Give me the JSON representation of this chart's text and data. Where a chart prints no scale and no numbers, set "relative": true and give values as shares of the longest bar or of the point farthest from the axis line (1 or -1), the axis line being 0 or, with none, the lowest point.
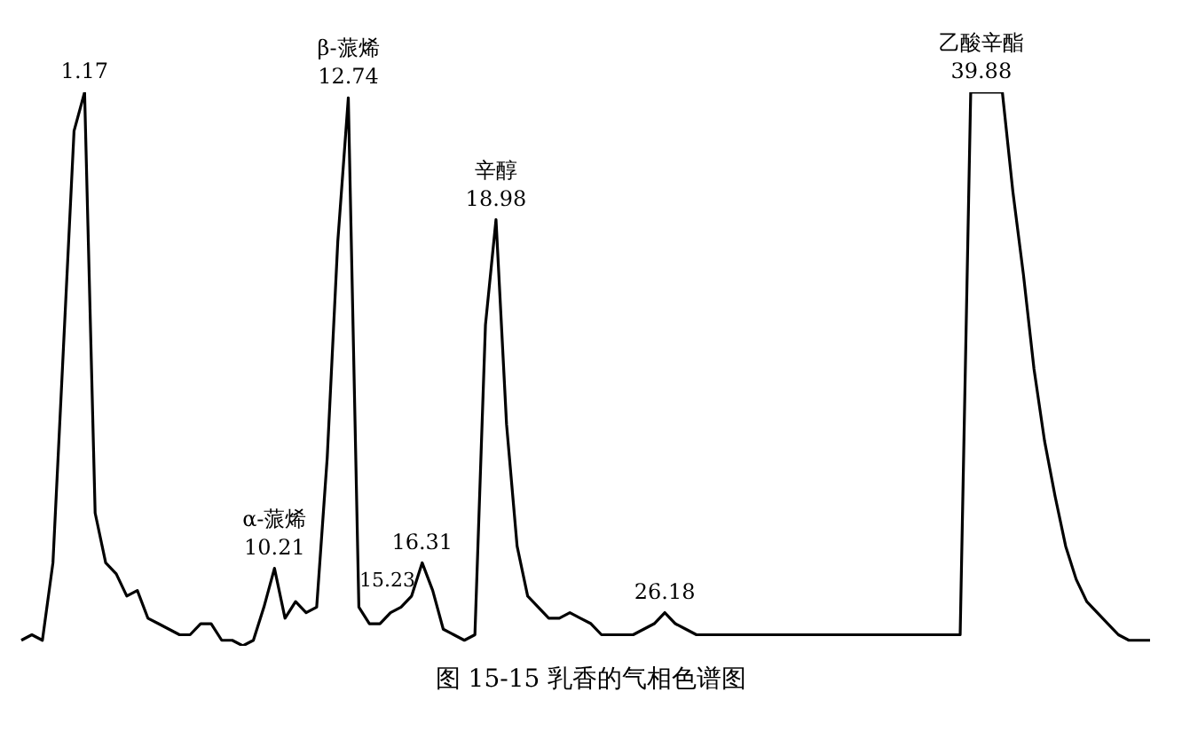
{
  "chart_data": {
    "type": "line",
    "title": "图 15-15  乳香的气相色谱图",
    "relative": true,
    "marker": "none",
    "legend": false,
    "annotations": [
      "1.17",
      "10.21",
      "α-蒎烯",
      "12.74",
      "β-蒎烯",
      "15.23",
      "16.31",
      "18.98",
      "辛醇",
      "26.18",
      "39.88",
      "乙酸辛酯"
    ],
    "categories": [
      null,
      null,
      null,
      null,
      null,
      null,
      null,
      null,
      null,
      null,
      null,
      null,
      null,
      null,
      null,
      null,
      null,
      null,
      null,
      null,
      null,
      null,
      null,
      null,
      null,
      null,
      null,
      null,
      null,
      null,
      null,
      null,
      null,
      null,
      null,
      null,
      null,
      null,
      null,
      null,
      null,
      null,
      null,
      null,
      null,
      null,
      null,
      null,
      null,
      null,
      null,
      null,
      null,
      null,
      null,
      null,
      null,
      null,
      null,
      null,
      null,
      null,
      null,
      null,
      null,
      null,
      null,
      null,
      null,
      null,
      null,
      null,
      null,
      null,
      null,
      null,
      null,
      null,
      null,
      null,
      null,
      null,
      null,
      null,
      null,
      null,
      null,
      null,
      null,
      null,
      null,
      null,
      null,
      null,
      null,
      null,
      null,
      null,
      null,
      null,
      null,
      null,
      null,
      null,
      null,
      null,
      null,
      null
    ],
    "series": [
      {
        "color": "#000000",
        "values": [
          0.01,
          0.02,
          0.01,
          0.15,
          0.54,
          0.93,
          1,
          0.24,
          0.15,
          0.13,
          0.09,
          0.1,
          0.05,
          0.04,
          0.03,
          0.02,
          0.02,
          0.04,
          0.04,
          0.01,
          0.01,
          0,
          0.01,
          0.07,
          0.14,
          0.05,
          0.08,
          0.06,
          0.07,
          0.34,
          0.73,
          0.99,
          0.07,
          0.04,
          0.04,
          0.06,
          0.07,
          0.09,
          0.15,
          0.1,
          0.03,
          0.02,
          0.01,
          0.02,
          0.58,
          0.77,
          0.4,
          0.18,
          0.09,
          0.07,
          0.05,
          0.05,
          0.06,
          0.05,
          0.04,
          0.02,
          0.02,
          0.02,
          0.02,
          0.03,
          0.04,
          0.06,
          0.04,
          0.03,
          0.02,
          0.02,
          0.02,
          0.02,
          0.02,
          0.02,
          0.02,
          0.02,
          0.02,
          0.02,
          0.02,
          0.02,
          0.02,
          0.02,
          0.02,
          0.02,
          0.02,
          0.02,
          0.02,
          0.02,
          0.02,
          0.02,
          0.02,
          0.02,
          0.02,
          0.02,
          1,
          1,
          1,
          1,
          0.82,
          0.67,
          0.5,
          0.37,
          0.27,
          0.18,
          0.12,
          0.08,
          0.06,
          0.04,
          0.02,
          0.01,
          0.01,
          0.01
        ]
      }
    ]
  }
}
